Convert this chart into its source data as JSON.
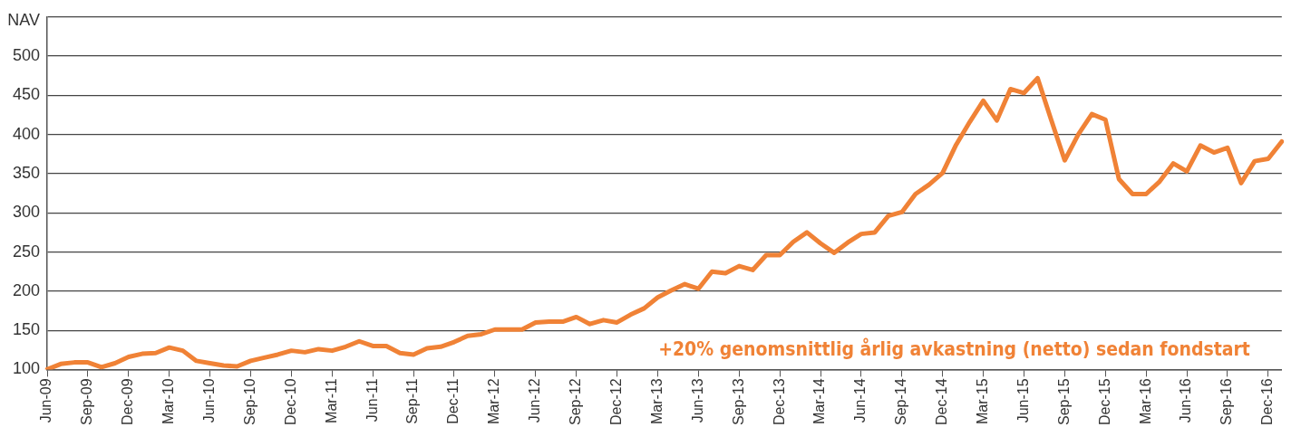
{
  "chart_data": {
    "type": "line",
    "ylabel": "NAV",
    "categories": [
      "Jun-09",
      null,
      null,
      "Sep-09",
      null,
      null,
      "Dec-09",
      null,
      null,
      "Mar-10",
      null,
      null,
      "Jun-10",
      null,
      null,
      "Sep-10",
      null,
      null,
      "Dec-10",
      null,
      null,
      "Mar-11",
      null,
      null,
      "Jun-11",
      null,
      null,
      "Sep-11",
      null,
      null,
      "Dec-11",
      null,
      null,
      "Mar-12",
      null,
      null,
      "Jun-12",
      null,
      null,
      "Sep-12",
      null,
      null,
      "Dec-12",
      null,
      null,
      "Mar-13",
      null,
      null,
      "Jun-13",
      null,
      null,
      "Sep-13",
      null,
      null,
      "Dec-13",
      null,
      null,
      "Mar-14",
      null,
      null,
      "Jun-14",
      null,
      null,
      "Sep-14",
      null,
      null,
      "Dec-14",
      null,
      null,
      "Mar-15",
      null,
      null,
      "Jun-15",
      null,
      null,
      "Sep-15",
      null,
      null,
      "Dec-15",
      null,
      null,
      "Mar-16",
      null,
      null,
      "Jun-16",
      null,
      null,
      "Sep-16",
      null,
      null,
      "Dec-16",
      null
    ],
    "series": [
      {
        "color": "#f08236",
        "values": [
          100,
          107,
          109,
          109,
          103,
          108,
          116,
          120,
          121,
          128,
          124,
          111,
          108,
          105,
          104,
          111,
          115,
          119,
          124,
          122,
          126,
          124,
          129,
          136,
          130,
          130,
          121,
          119,
          127,
          129,
          135,
          143,
          145,
          151,
          151,
          151,
          160,
          161,
          161,
          167,
          158,
          163,
          160,
          170,
          178,
          192,
          201,
          209,
          203,
          225,
          223,
          232,
          227,
          246,
          246,
          263,
          275,
          261,
          249,
          262,
          273,
          275,
          296,
          301,
          324,
          336,
          351,
          387,
          416,
          443,
          418,
          458,
          453,
          472,
          419,
          367,
          400,
          426,
          419,
          343,
          324,
          324,
          340,
          363,
          353,
          386,
          377,
          383,
          338,
          366,
          369,
          391
        ]
      }
    ],
    "ylim": [
      100,
      550
    ],
    "yticks": [
      100,
      150,
      200,
      250,
      300,
      350,
      400,
      450,
      500,
      {
        "value": 550,
        "label": null
      }
    ],
    "grid": "y",
    "legend": false,
    "marker": "none",
    "line_style": "solid",
    "annotations": [
      "+20% genomsnittlig årlig avkastning (netto) sedan fondstart"
    ]
  }
}
